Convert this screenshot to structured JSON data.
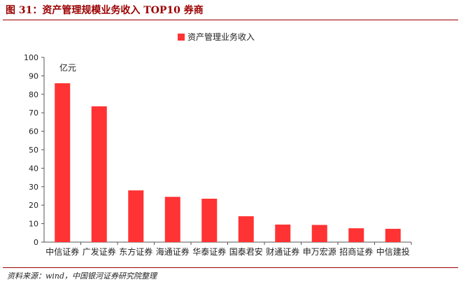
{
  "figure": {
    "title": "图 31：资产管理规模业务收入 TOP10 券商",
    "source_label": "资料来源：",
    "source_text": "wind，中国银河证券研究院整理"
  },
  "colors": {
    "bar": "#ff3333",
    "frame": "#9b0000",
    "axis": "#555555"
  },
  "chart_data": {
    "type": "bar",
    "categories": [
      "中信证券",
      "广发证券",
      "东方证券",
      "海通证券",
      "华泰证券",
      "国泰君安",
      "财通证券",
      "申万宏源",
      "招商证券",
      "中信建投"
    ],
    "series": [
      {
        "name": "资产管理业务收入",
        "values": [
          86,
          73.5,
          28,
          24.5,
          23.5,
          14,
          9.5,
          9.3,
          7.5,
          7.2
        ]
      }
    ],
    "unit_label": "亿元",
    "ylim": [
      0,
      100
    ],
    "yticks": [
      0,
      10,
      20,
      30,
      40,
      50,
      60,
      70,
      80,
      90,
      100
    ],
    "grid": false,
    "legend": "top"
  }
}
